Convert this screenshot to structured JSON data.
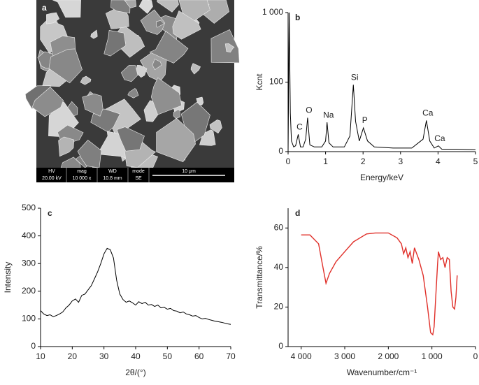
{
  "sem_image": {
    "label": "a",
    "info": [
      {
        "key": "HV",
        "value": "20.00 kV"
      },
      {
        "key": "mag",
        "value": "10 000 x"
      },
      {
        "key": "WD",
        "value": "10.8 mm"
      },
      {
        "key": "mode",
        "value": "SE"
      }
    ],
    "scale_bar": "10 μm"
  },
  "chart_data": [
    {
      "type": "line",
      "label": "b",
      "x_label": "Energy/keV",
      "y_label": "Kcnt",
      "yscale": "symlog",
      "xlim": [
        0,
        5
      ],
      "xticks": [
        0,
        1,
        2,
        3,
        4,
        5
      ],
      "ylim": [
        0,
        1000
      ],
      "yticks": [
        0,
        100,
        {
          "value": 1000,
          "label": "1 000"
        }
      ],
      "x": [
        0,
        0.03,
        0.06,
        0.09,
        0.15,
        0.2,
        0.27,
        0.33,
        0.4,
        0.47,
        0.52,
        0.58,
        0.7,
        0.9,
        1.0,
        1.04,
        1.09,
        1.2,
        1.5,
        1.65,
        1.74,
        1.8,
        1.9,
        2.01,
        2.12,
        2.3,
        2.8,
        3.3,
        3.6,
        3.69,
        3.78,
        3.9,
        4.01,
        4.1,
        4.5,
        5.0
      ],
      "series": [
        {
          "color": "#000000",
          "values": [
            0,
            1000,
            30,
            5,
            2,
            2.5,
            9,
            2,
            2,
            6,
            24,
            3,
            2,
            2,
            5,
            19,
            4,
            2,
            2,
            8,
            91,
            20,
            5,
            14,
            5,
            2,
            1.5,
            1.5,
            6,
            21,
            5,
            1.5,
            2.5,
            1,
            1,
            0.8
          ]
        }
      ],
      "peak_labels": [
        {
          "text": "C",
          "x": 0.27
        },
        {
          "text": "O",
          "x": 0.52
        },
        {
          "text": "Na",
          "x": 1.04
        },
        {
          "text": "Si",
          "x": 1.74
        },
        {
          "text": "P",
          "x": 2.01
        },
        {
          "text": "Ca",
          "x": 3.69
        },
        {
          "text": "Ca",
          "x": 4.01
        }
      ]
    },
    {
      "type": "line",
      "label": "c",
      "x_label": "2θ/(°)",
      "y_label": "Intensity",
      "xlim": [
        10,
        70
      ],
      "xticks": [
        10,
        20,
        30,
        40,
        50,
        60,
        70
      ],
      "ylim": [
        0,
        500
      ],
      "yticks": [
        0,
        100,
        200,
        300,
        400,
        500
      ],
      "x": [
        10,
        11,
        12,
        13,
        14,
        15,
        16,
        17,
        18,
        19,
        20,
        21,
        22,
        23,
        24,
        25,
        26,
        27,
        28,
        29,
        30,
        31,
        32,
        33,
        34,
        35,
        36,
        37,
        38,
        39,
        40,
        41,
        42,
        43,
        44,
        45,
        46,
        47,
        48,
        49,
        50,
        51,
        52,
        53,
        54,
        55,
        56,
        57,
        58,
        59,
        60,
        61,
        62,
        63,
        64,
        65,
        66,
        67,
        68,
        69,
        70
      ],
      "series": [
        {
          "color": "#000000",
          "values": [
            130,
            118,
            112,
            115,
            108,
            112,
            118,
            125,
            140,
            150,
            165,
            172,
            160,
            185,
            190,
            205,
            220,
            245,
            270,
            300,
            335,
            355,
            350,
            320,
            240,
            190,
            170,
            160,
            165,
            158,
            150,
            162,
            155,
            160,
            150,
            152,
            145,
            150,
            140,
            142,
            135,
            138,
            130,
            128,
            122,
            125,
            118,
            115,
            110,
            112,
            105,
            100,
            102,
            98,
            95,
            92,
            90,
            88,
            85,
            82,
            80
          ]
        }
      ]
    },
    {
      "type": "line",
      "label": "d",
      "x_label": "Wavenumber/cm⁻¹",
      "y_label": "Transmittance/%",
      "xlim": [
        4300,
        0
      ],
      "xticks": [
        {
          "value": 4000,
          "label": "4 000"
        },
        {
          "value": 3000,
          "label": "3 000"
        },
        {
          "value": 2000,
          "label": "2 000"
        },
        {
          "value": 1000,
          "label": "1 000"
        },
        0
      ],
      "ylim": [
        0,
        70
      ],
      "yticks": [
        0,
        20,
        40,
        60
      ],
      "x": [
        4000,
        3800,
        3600,
        3500,
        3430,
        3350,
        3200,
        3000,
        2800,
        2500,
        2300,
        2000,
        1800,
        1700,
        1650,
        1600,
        1550,
        1500,
        1450,
        1400,
        1300,
        1200,
        1100,
        1030,
        980,
        950,
        900,
        870,
        850,
        800,
        750,
        700,
        650,
        600,
        560,
        520,
        480,
        450,
        420
      ],
      "series": [
        {
          "color": "#e0302a",
          "values": [
            56.5,
            56.5,
            52,
            40,
            32,
            37,
            43,
            48,
            53,
            57,
            57.5,
            57.5,
            55,
            52,
            47,
            50,
            45,
            48,
            42,
            50,
            44,
            36,
            20,
            7,
            6,
            10,
            30,
            42,
            48,
            44,
            45,
            40,
            45,
            44,
            28,
            20,
            19,
            25,
            36
          ]
        }
      ]
    }
  ]
}
